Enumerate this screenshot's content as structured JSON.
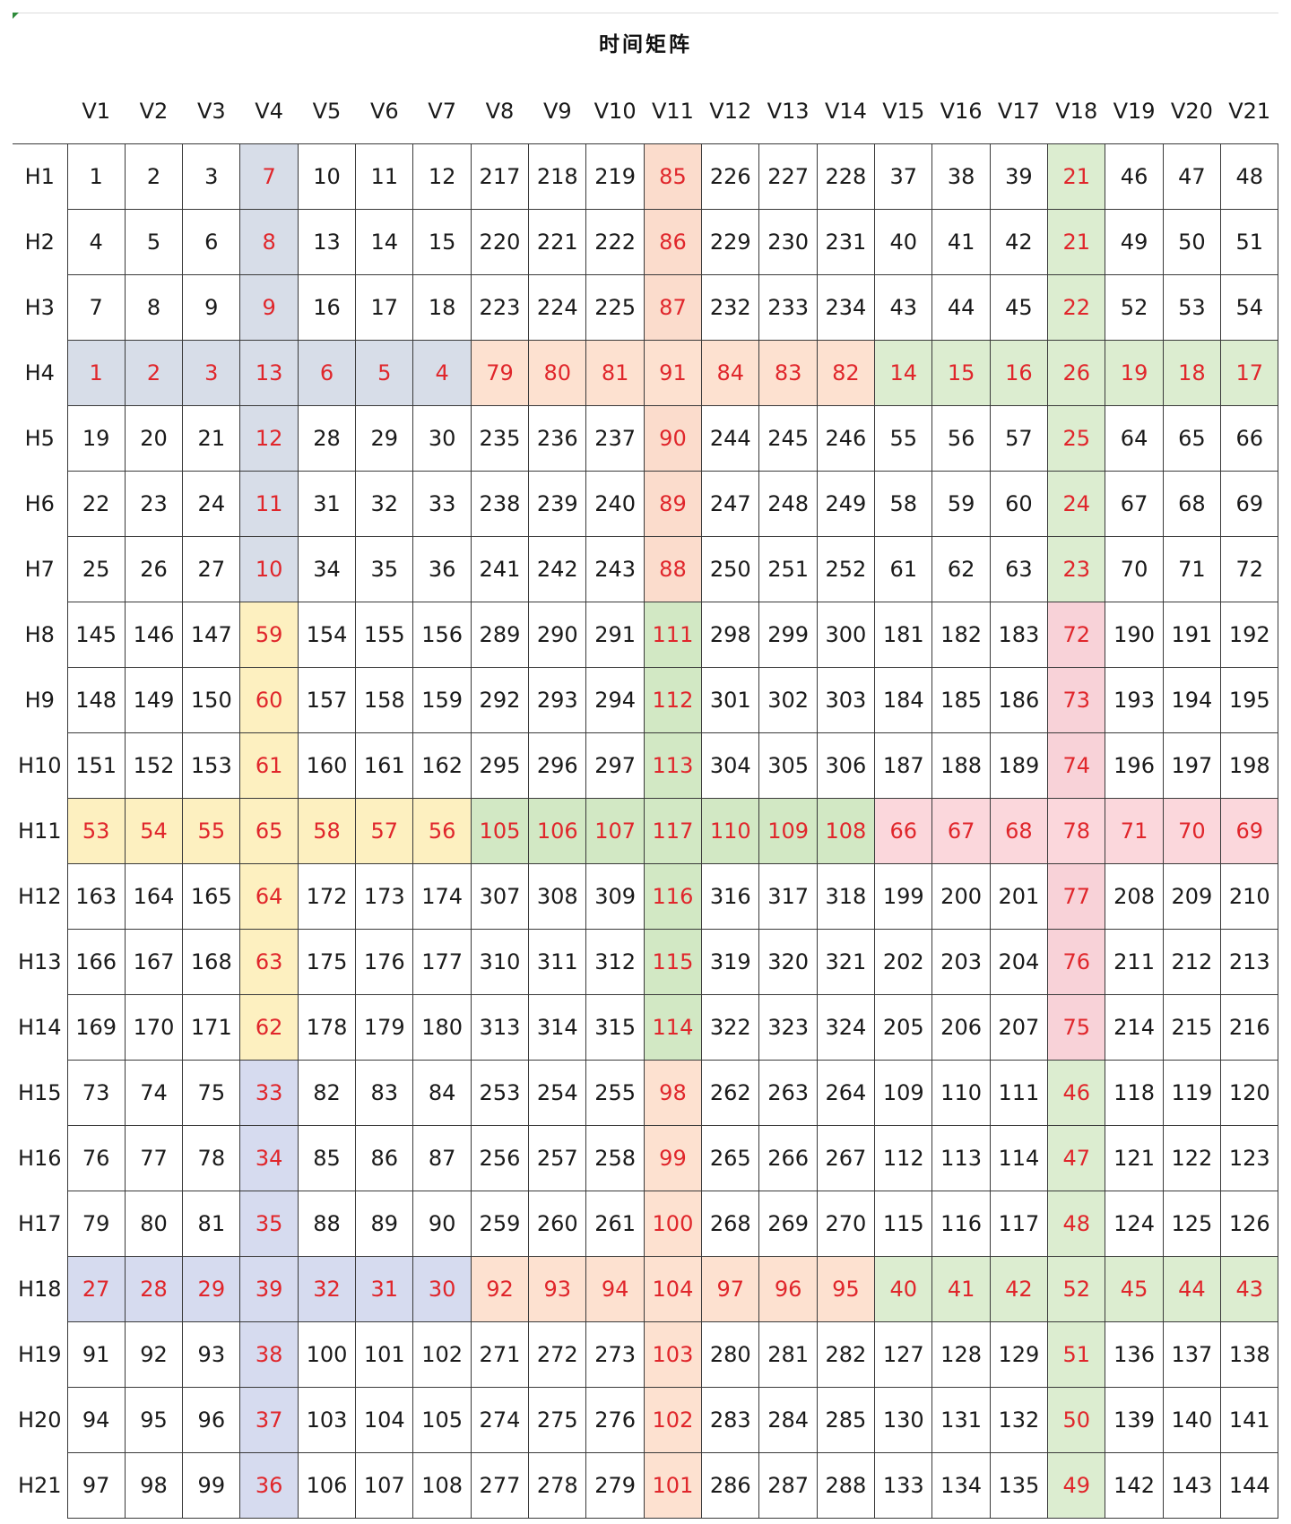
{
  "title": "时间矩阵",
  "columns": [
    "V1",
    "V2",
    "V3",
    "V4",
    "V5",
    "V6",
    "V7",
    "V8",
    "V9",
    "V10",
    "V11",
    "V12",
    "V13",
    "V14",
    "V15",
    "V16",
    "V17",
    "V18",
    "V19",
    "V20",
    "V21"
  ],
  "rows": [
    {
      "label": "H1",
      "values": [
        1,
        2,
        3,
        7,
        10,
        11,
        12,
        217,
        218,
        219,
        85,
        226,
        227,
        228,
        37,
        38,
        39,
        21,
        46,
        47,
        48
      ]
    },
    {
      "label": "H2",
      "values": [
        4,
        5,
        6,
        8,
        13,
        14,
        15,
        220,
        221,
        222,
        86,
        229,
        230,
        231,
        40,
        41,
        42,
        21,
        49,
        50,
        51
      ]
    },
    {
      "label": "H3",
      "values": [
        7,
        8,
        9,
        9,
        16,
        17,
        18,
        223,
        224,
        225,
        87,
        232,
        233,
        234,
        43,
        44,
        45,
        22,
        52,
        53,
        54
      ]
    },
    {
      "label": "H4",
      "values": [
        1,
        2,
        3,
        13,
        6,
        5,
        4,
        79,
        80,
        81,
        91,
        84,
        83,
        82,
        14,
        15,
        16,
        26,
        19,
        18,
        17
      ]
    },
    {
      "label": "H5",
      "values": [
        19,
        20,
        21,
        12,
        28,
        29,
        30,
        235,
        236,
        237,
        90,
        244,
        245,
        246,
        55,
        56,
        57,
        25,
        64,
        65,
        66
      ]
    },
    {
      "label": "H6",
      "values": [
        22,
        23,
        24,
        11,
        31,
        32,
        33,
        238,
        239,
        240,
        89,
        247,
        248,
        249,
        58,
        59,
        60,
        24,
        67,
        68,
        69
      ]
    },
    {
      "label": "H7",
      "values": [
        25,
        26,
        27,
        10,
        34,
        35,
        36,
        241,
        242,
        243,
        88,
        250,
        251,
        252,
        61,
        62,
        63,
        23,
        70,
        71,
        72
      ]
    },
    {
      "label": "H8",
      "values": [
        145,
        146,
        147,
        59,
        154,
        155,
        156,
        289,
        290,
        291,
        111,
        298,
        299,
        300,
        181,
        182,
        183,
        72,
        190,
        191,
        192
      ]
    },
    {
      "label": "H9",
      "values": [
        148,
        149,
        150,
        60,
        157,
        158,
        159,
        292,
        293,
        294,
        112,
        301,
        302,
        303,
        184,
        185,
        186,
        73,
        193,
        194,
        195
      ]
    },
    {
      "label": "H10",
      "values": [
        151,
        152,
        153,
        61,
        160,
        161,
        162,
        295,
        296,
        297,
        113,
        304,
        305,
        306,
        187,
        188,
        189,
        74,
        196,
        197,
        198
      ]
    },
    {
      "label": "H11",
      "values": [
        53,
        54,
        55,
        65,
        58,
        57,
        56,
        105,
        106,
        107,
        117,
        110,
        109,
        108,
        66,
        67,
        68,
        78,
        71,
        70,
        69
      ]
    },
    {
      "label": "H12",
      "values": [
        163,
        164,
        165,
        64,
        172,
        173,
        174,
        307,
        308,
        309,
        116,
        316,
        317,
        318,
        199,
        200,
        201,
        77,
        208,
        209,
        210
      ]
    },
    {
      "label": "H13",
      "values": [
        166,
        167,
        168,
        63,
        175,
        176,
        177,
        310,
        311,
        312,
        115,
        319,
        320,
        321,
        202,
        203,
        204,
        76,
        211,
        212,
        213
      ]
    },
    {
      "label": "H14",
      "values": [
        169,
        170,
        171,
        62,
        178,
        179,
        180,
        313,
        314,
        315,
        114,
        322,
        323,
        324,
        205,
        206,
        207,
        75,
        214,
        215,
        216
      ]
    },
    {
      "label": "H15",
      "values": [
        73,
        74,
        75,
        33,
        82,
        83,
        84,
        253,
        254,
        255,
        98,
        262,
        263,
        264,
        109,
        110,
        111,
        46,
        118,
        119,
        120
      ]
    },
    {
      "label": "H16",
      "values": [
        76,
        77,
        78,
        34,
        85,
        86,
        87,
        256,
        257,
        258,
        99,
        265,
        266,
        267,
        112,
        113,
        114,
        47,
        121,
        122,
        123
      ]
    },
    {
      "label": "H17",
      "values": [
        79,
        80,
        81,
        35,
        88,
        89,
        90,
        259,
        260,
        261,
        100,
        268,
        269,
        270,
        115,
        116,
        117,
        48,
        124,
        125,
        126
      ]
    },
    {
      "label": "H18",
      "values": [
        27,
        28,
        29,
        39,
        32,
        31,
        30,
        92,
        93,
        94,
        104,
        97,
        96,
        95,
        40,
        41,
        42,
        52,
        45,
        44,
        43
      ]
    },
    {
      "label": "H19",
      "values": [
        91,
        92,
        93,
        38,
        100,
        101,
        102,
        271,
        272,
        273,
        103,
        280,
        281,
        282,
        127,
        128,
        129,
        51,
        136,
        137,
        138
      ]
    },
    {
      "label": "H20",
      "values": [
        94,
        95,
        96,
        37,
        103,
        104,
        105,
        274,
        275,
        276,
        102,
        283,
        284,
        285,
        130,
        131,
        132,
        50,
        139,
        140,
        141
      ]
    },
    {
      "label": "H21",
      "values": [
        97,
        98,
        99,
        36,
        106,
        107,
        108,
        277,
        278,
        279,
        101,
        286,
        287,
        288,
        133,
        134,
        135,
        49,
        142,
        143,
        144
      ]
    }
  ],
  "colors": {
    "highlight_text": "#e0262b",
    "grid_line": "#3a3a3a",
    "slate_blue": "#d7dde8",
    "light_orange": "#fbdccc",
    "light_green": "#d2e8c4",
    "light_yellow": "#fdf0c0",
    "periwinkle": "#d6dbef",
    "light_pink": "#f8d2d8"
  }
}
